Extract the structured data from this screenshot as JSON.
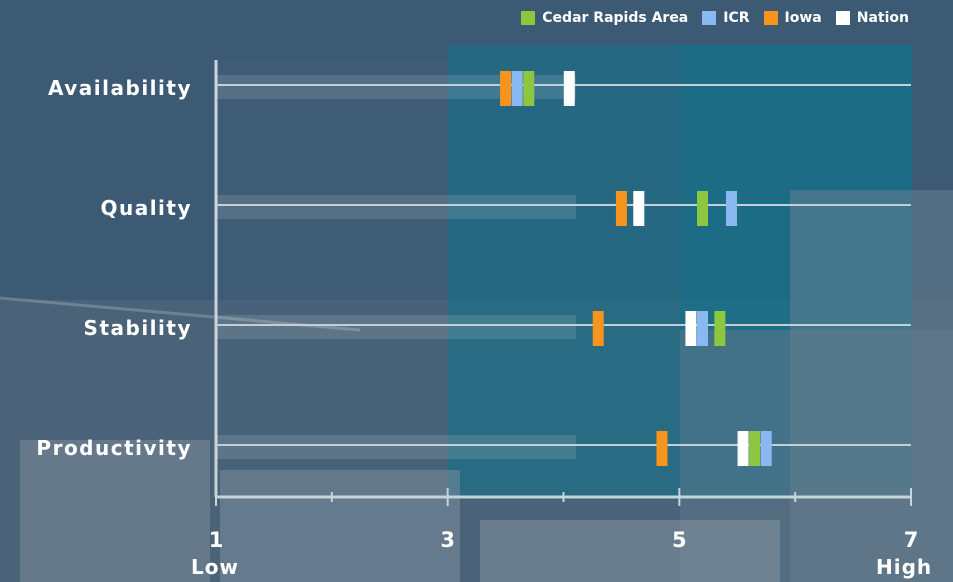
{
  "legend": [
    {
      "name": "Cedar Rapids Area",
      "color": "#8dc63f"
    },
    {
      "name": "ICR",
      "color": "#8ab8f0"
    },
    {
      "name": "Iowa",
      "color": "#f7941d"
    },
    {
      "name": "Nation",
      "color": "#ffffff"
    }
  ],
  "axis": {
    "low_label": "Low",
    "high_label": "High"
  },
  "chart_data": {
    "type": "scatter",
    "categories": [
      "Availability",
      "Quality",
      "Stability",
      "Productivity"
    ],
    "xlim": [
      1,
      7
    ],
    "xticks": [
      1,
      3,
      5,
      7
    ],
    "xtick_labels": [
      "1",
      "3",
      "5",
      "7"
    ],
    "series": [
      {
        "name": "Cedar Rapids Area",
        "color": "#8dc63f",
        "values": [
          3.7,
          5.2,
          5.35,
          5.65
        ]
      },
      {
        "name": "ICR",
        "color": "#8ab8f0",
        "values": [
          3.6,
          5.45,
          5.2,
          5.75
        ]
      },
      {
        "name": "Iowa",
        "color": "#f7941d",
        "values": [
          3.5,
          4.5,
          4.3,
          4.85
        ]
      },
      {
        "name": "Nation",
        "color": "#ffffff",
        "values": [
          4.05,
          4.65,
          5.1,
          5.55
        ]
      }
    ]
  }
}
